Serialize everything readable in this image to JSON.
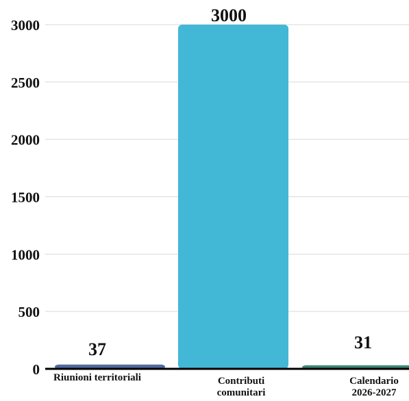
{
  "chart_data": {
    "type": "bar",
    "categories": [
      "Riunioni territoriali",
      "Contributi comunitari",
      "Calendario 2026-2027"
    ],
    "values": [
      37,
      3000,
      31
    ],
    "colors": [
      "#4f6a9c",
      "#42b8d6",
      "#3c8a78"
    ],
    "data_labels": [
      "37",
      "3000",
      "31"
    ],
    "yticks": [
      "0",
      "500",
      "1000",
      "1500",
      "2000",
      "2500",
      "3000"
    ],
    "ylim": [
      0,
      3000
    ],
    "grid": true,
    "legend": "none"
  }
}
